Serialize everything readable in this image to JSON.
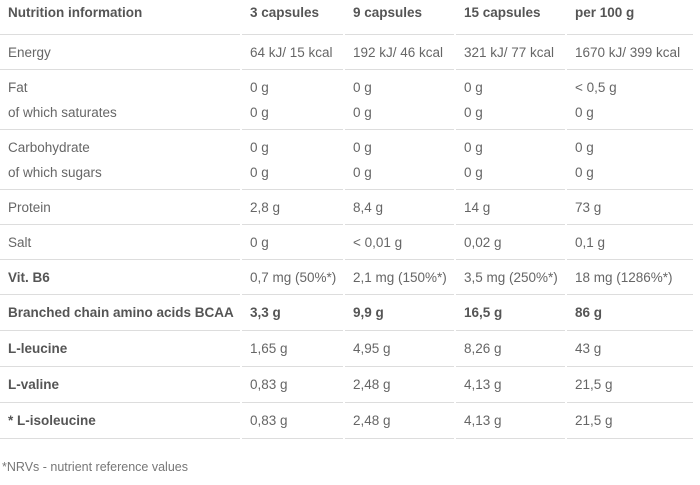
{
  "table": {
    "headers": [
      "Nutrition information",
      "3 capsules",
      "9 capsules",
      "15 capsules",
      "per 100 g"
    ],
    "rows": [
      {
        "label": "Energy",
        "values": [
          "64 kJ/ 15 kcal",
          "192 kJ/ 46 kcal",
          "321 kJ/ 77 kcal",
          "1670 kJ/ 399 kcal"
        ],
        "bold": false
      },
      {
        "label": "Fat",
        "sublabel": "of which saturates",
        "values": [
          "0 g",
          "0 g",
          "0 g",
          "< 0,5 g"
        ],
        "subvalues": [
          "0 g",
          "0 g",
          "0 g",
          "0 g"
        ]
      },
      {
        "label": "Carbohydrate",
        "sublabel": "of which sugars",
        "values": [
          "0 g",
          "0 g",
          "0 g",
          "0 g"
        ],
        "subvalues": [
          "0 g",
          "0 g",
          "0 g",
          "0 g"
        ]
      },
      {
        "label": "Protein",
        "values": [
          "2,8 g",
          "8,4 g",
          "14 g",
          "73 g"
        ],
        "bold": false
      },
      {
        "label": "Salt",
        "values": [
          "0 g",
          "< 0,01 g",
          "0,02 g",
          "0,1 g"
        ],
        "bold": false
      },
      {
        "label": "Vit. B6",
        "values": [
          "0,7 mg (50%*)",
          "2,1 mg (150%*)",
          "3,5 mg (250%*)",
          "18 mg (1286%*)"
        ],
        "bold": "label"
      },
      {
        "label": "Branched chain amino acids BCAA",
        "values": [
          "3,3 g",
          "9,9 g",
          "16,5 g",
          "86 g"
        ],
        "bold": "all"
      },
      {
        "label": "L-leucine",
        "values": [
          "1,65 g",
          "4,95 g",
          "8,26 g",
          "43 g"
        ],
        "bold": "label"
      },
      {
        "label": "L-valine",
        "values": [
          "0,83 g",
          "2,48 g",
          "4,13 g",
          "21,5 g"
        ],
        "bold": "label"
      },
      {
        "label": "* L-isoleucine",
        "values": [
          "0,83 g",
          "2,48 g",
          "4,13 g",
          "21,5 g"
        ],
        "bold": "label"
      }
    ]
  },
  "footnote": "*NRVs - nutrient reference values"
}
